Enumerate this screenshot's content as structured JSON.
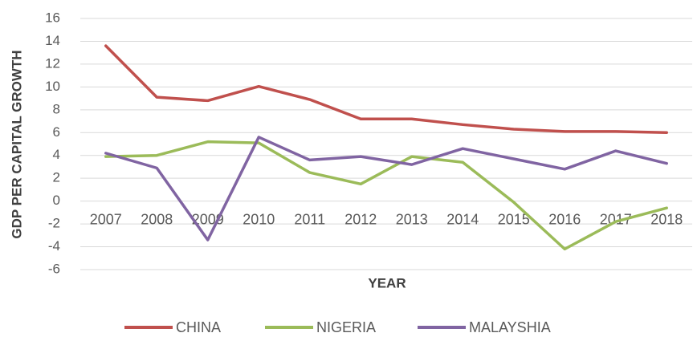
{
  "chart_data": {
    "type": "line",
    "x_label": "YEAR",
    "y_label": "GDP PER CAPITAL GROWTH",
    "categories": [
      "2007",
      "2008",
      "2009",
      "2010",
      "2011",
      "2012",
      "2013",
      "2014",
      "2015",
      "2016",
      "2017",
      "2018"
    ],
    "series": [
      {
        "name": "CHINA",
        "color": "#c0504d",
        "values": [
          13.6,
          9.1,
          8.8,
          10.05,
          8.9,
          7.2,
          7.2,
          6.7,
          6.3,
          6.1,
          6.1,
          6.0
        ]
      },
      {
        "name": "NIGERIA",
        "color": "#9bbb59",
        "values": [
          3.9,
          4.0,
          5.2,
          5.1,
          2.5,
          1.5,
          3.9,
          3.4,
          -0.1,
          -4.2,
          -1.8,
          -0.6
        ]
      },
      {
        "name": "MALAYSHIA",
        "color": "#8064a2",
        "values": [
          4.2,
          2.9,
          -3.4,
          5.6,
          3.6,
          3.9,
          3.2,
          4.6,
          3.7,
          2.8,
          4.4,
          3.3
        ]
      }
    ],
    "ylim": [
      -6,
      16
    ],
    "yticks": [
      -6,
      -4,
      -2,
      0,
      2,
      4,
      6,
      8,
      10,
      12,
      14,
      16
    ],
    "grid": true,
    "legend": "bottom"
  }
}
